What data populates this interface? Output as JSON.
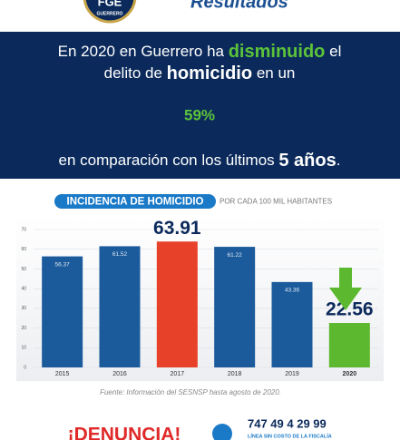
{
  "header": {
    "logo_text": "FGE",
    "logo_subtext": "GUERRERO",
    "title": "Resultados"
  },
  "headline": [
    [
      "En 2020 en Guerrero ha ",
      "disminuido",
      " el"
    ],
    [
      "delito de ",
      "homicidio",
      " en un"
    ],
    [
      "59%"
    ],
    [
      "en comparación con los últimos ",
      "5 años",
      "."
    ]
  ],
  "chart_data": {
    "type": "bar",
    "title": "INCIDENCIA DE HOMICIDIO",
    "subtitle": "POR CADA 100 MIL HABITANTES",
    "categories": [
      "2015",
      "2016",
      "2017",
      "2018",
      "2019",
      "2020"
    ],
    "values": [
      56.37,
      61.52,
      63.91,
      61.22,
      43.36,
      22.56
    ],
    "colors": [
      "#1b5b9c",
      "#1b5b9c",
      "#e8412a",
      "#1b5b9c",
      "#1b5b9c",
      "#5cb82e"
    ],
    "ylim": [
      0,
      70
    ],
    "yticks": [
      0,
      10,
      20,
      30,
      40,
      50,
      60,
      70
    ],
    "grid": true
  },
  "source": "Fuente: Información del SESNSP hasta agosto de 2020.",
  "footer": {
    "call": "¡DENUNCIA!",
    "phone": "747 49 4 29 99",
    "phone_note": "LÍNEA SIN COSTO DE LA FISCALÍA"
  }
}
